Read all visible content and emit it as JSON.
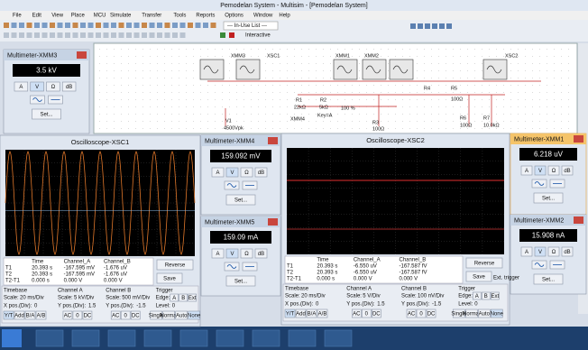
{
  "window": {
    "title": "Pemodelan System - Multisim - [Pemodelan System]"
  },
  "menu": [
    "File",
    "Edit",
    "View",
    "Place",
    "MCU",
    "Simulate",
    "Transfer",
    "Tools",
    "Reports",
    "Options",
    "Window",
    "Help"
  ],
  "toolbar": {
    "in_use_list": "--- In-Use List ---",
    "interactive": "Interactive"
  },
  "schematic": {
    "labels": [
      "XMM3",
      "XSC1",
      "XMM1",
      "XMM2",
      "R1",
      "22kΩ",
      "R2",
      "5kΩ",
      "Key=A",
      "100 %",
      "XMM4",
      "V1",
      "4500Vpk",
      "R3",
      "100Ω",
      "R4",
      "R5",
      "100Ω",
      "R6",
      "100Ω",
      "R7",
      "10.0kΩ",
      "XSC2"
    ]
  },
  "meter_buttons": [
    "A",
    "V",
    "Ω",
    "dB"
  ],
  "meter_set": "Set...",
  "multimeters": [
    {
      "title": "Multimeter-XMM3",
      "reading": "3.5 kV"
    },
    {
      "title": "Multimeter-XMM4",
      "reading": "159.092 mV"
    },
    {
      "title": "Multimeter-XMM5",
      "reading": "159.09 mA"
    },
    {
      "title": "Multimeter-XMM1",
      "reading": "6.218 uV"
    },
    {
      "title": "Multimeter-XMM2",
      "reading": "15.908 nA"
    }
  ],
  "scope_labels": {
    "headers": [
      "Time",
      "Channel_A",
      "Channel_B"
    ],
    "reverse": "Reverse",
    "save": "Save",
    "timebase": "Timebase",
    "channel_a": "Channel A",
    "channel_b": "Channel B",
    "trigger": "Trigger",
    "scale": "Scale:",
    "x_pos": "X pos.(Div):",
    "y_pos": "Y pos.(Div):",
    "edge": "Edge:",
    "level": "Level:",
    "mode_buttons": [
      "Y/T",
      "Add",
      "B/A",
      "A/B"
    ],
    "coupling": [
      "AC",
      "0",
      "DC"
    ],
    "trigger_buttons": [
      "Single",
      "Normal",
      "Auto",
      "None"
    ],
    "edge_buttons": [
      "A",
      "B",
      "Ext"
    ]
  },
  "oscilloscopes": [
    {
      "title": "Oscilloscope-XSC1",
      "rows": [
        [
          "T1",
          "20.393 s",
          "-167.595 mV",
          "-1.676 uV"
        ],
        [
          "T2",
          "20.393 s",
          "-167.595 mV",
          "-1.676 uV"
        ],
        [
          "T2-T1",
          "0.000 s",
          "0.000 V",
          "0.000 V"
        ]
      ],
      "timebase_scale": "20 ms/Div",
      "x_pos": "0",
      "a_scale": "5 kV/Div",
      "a_ypos": "1.5",
      "b_scale": "500 mV/Div",
      "b_ypos": "-1.5",
      "level": "0"
    },
    {
      "title": "Oscilloscope-XSC2",
      "rows": [
        [
          "T1",
          "20.393 s",
          "-6.550 uV",
          "-167.587 fV"
        ],
        [
          "T2",
          "20.393 s",
          "-6.550 uV",
          "-167.587 fV"
        ],
        [
          "T2-T1",
          "0.000 s",
          "0.000 V",
          "0.000 V"
        ]
      ],
      "timebase_scale": "20 ms/Div",
      "x_pos": "0",
      "a_scale": "5 V/Div",
      "a_ypos": "1.5",
      "b_scale": "100 nV/Div",
      "b_ypos": "-1.5",
      "level": "0",
      "ext_trigger": "Ext. trigger"
    }
  ]
}
